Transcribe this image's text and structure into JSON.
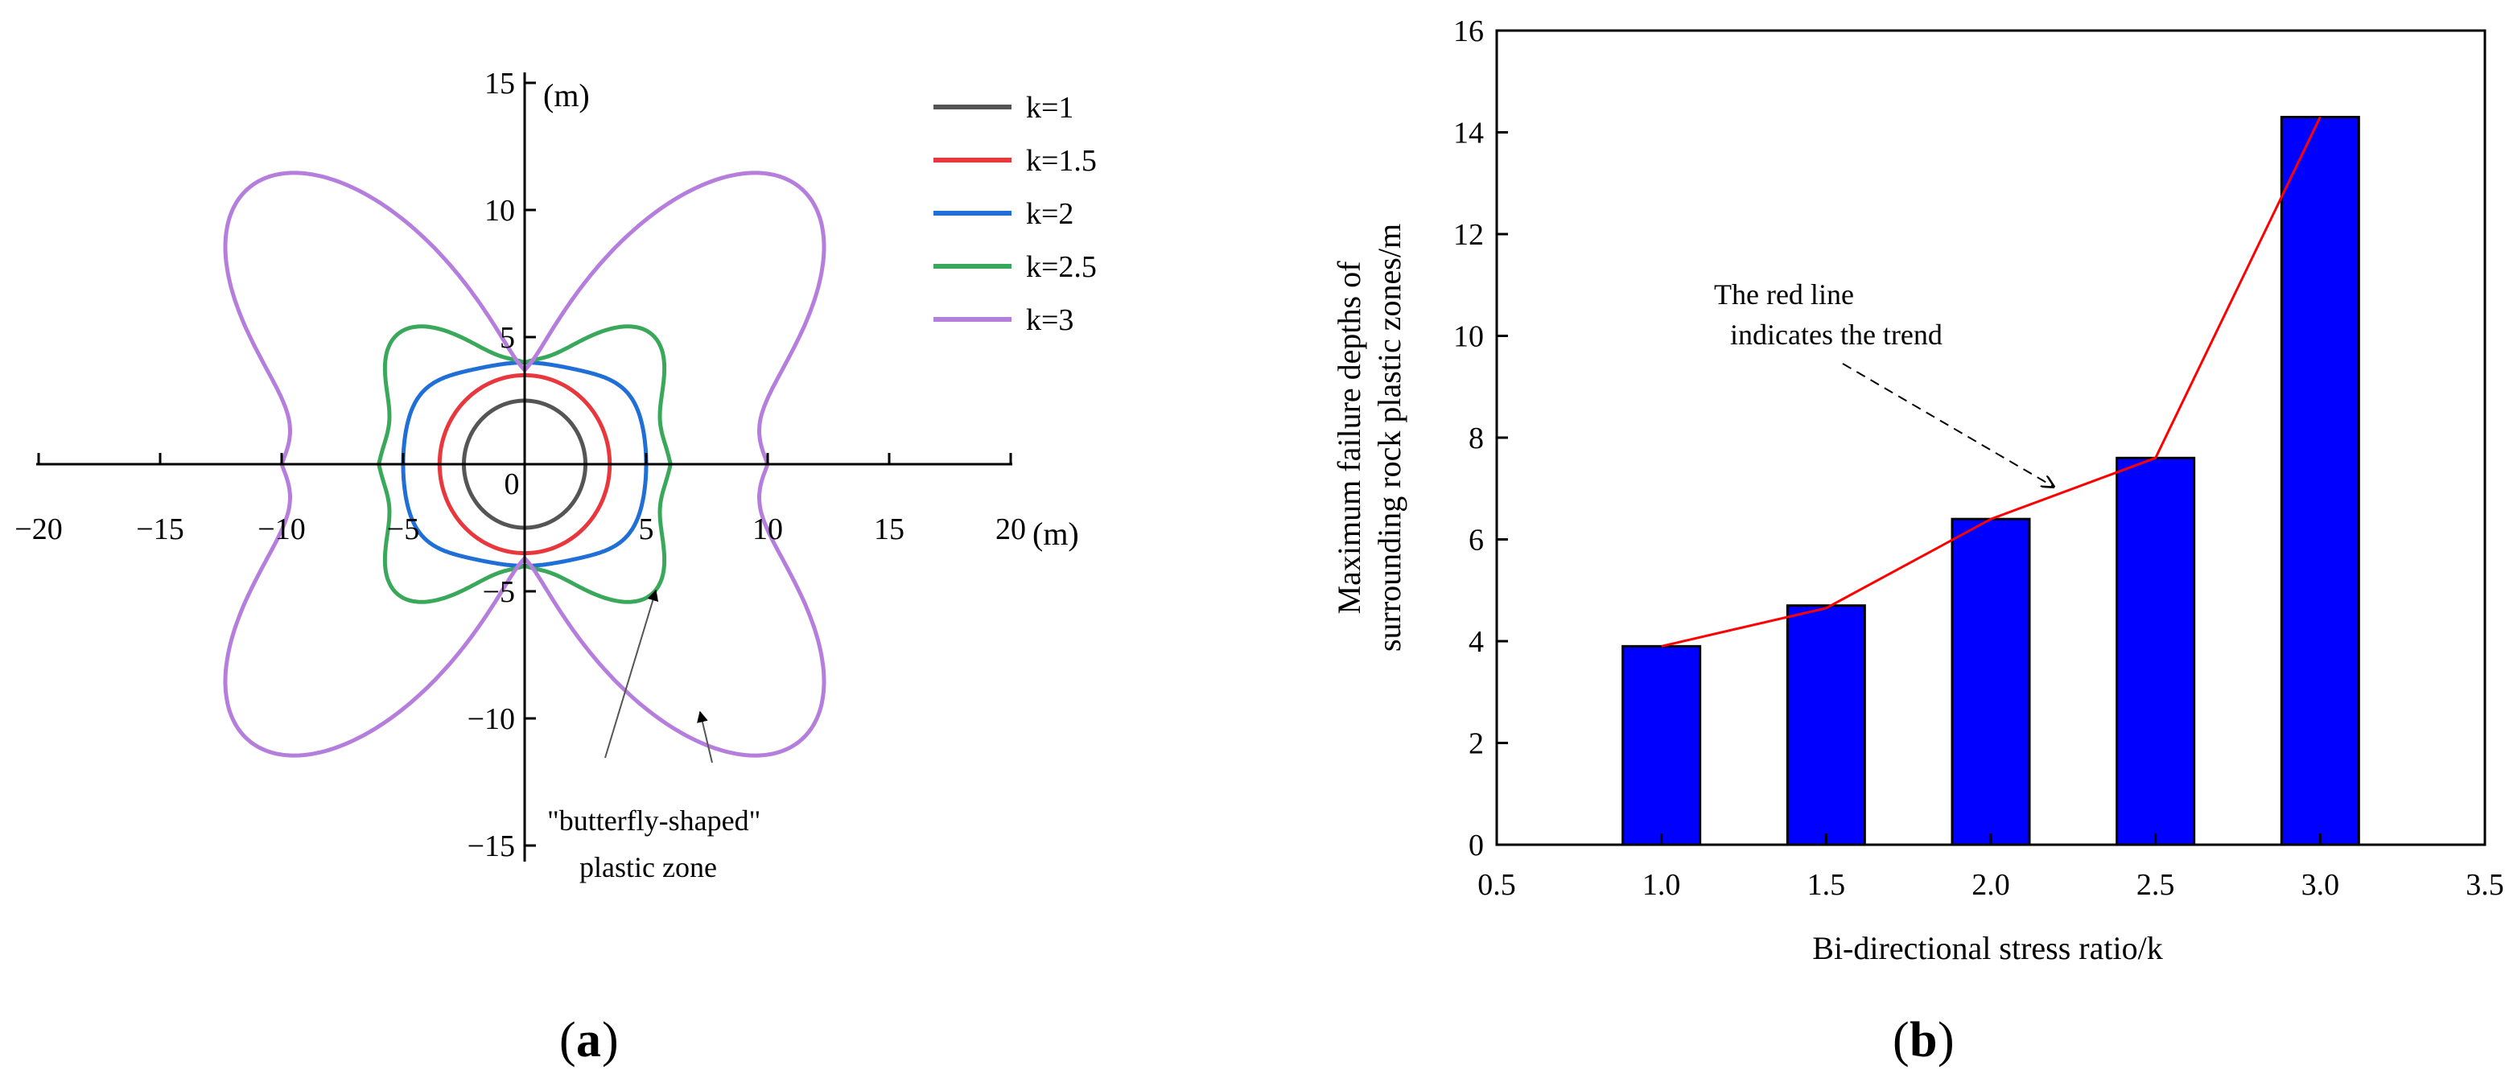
{
  "chart_data": [
    {
      "panel": "a",
      "type": "line",
      "title": "",
      "axes": {
        "x_unit": "(m)",
        "y_unit": "(m)",
        "xlim": [
          -20,
          20
        ],
        "ylim": [
          -15,
          15
        ]
      },
      "x_ticks": [
        "−20",
        "−15",
        "−10",
        "−5",
        "0",
        "5",
        "10",
        "15",
        "20"
      ],
      "y_ticks": [
        "15",
        "10",
        "5",
        "−5",
        "−10",
        "−15"
      ],
      "origin_label": "0",
      "series": [
        {
          "name": "k=1",
          "color": "#555555",
          "shape": "single",
          "depth_x": 2.5,
          "depth_y": 2.5
        },
        {
          "name": "k=1.5",
          "color": "#e8383d",
          "shape": "single",
          "depth_x": 3.5,
          "depth_y": 3.5
        },
        {
          "name": "k=2",
          "color": "#1f6fd6",
          "shape": "wide",
          "depth_x": 5.0,
          "depth_y": 4.0
        },
        {
          "name": "k=2.5",
          "color": "#3aa85a",
          "shape": "lobed",
          "depth_x": 6.5,
          "depth_y": 4.5
        },
        {
          "name": "k=3",
          "color": "#b57edc",
          "shape": "butterfly",
          "depth_x": 10.0,
          "depth_y": 12.0
        }
      ],
      "annotation": [
        "\"butterfly-shaped\"",
        "plastic zone"
      ],
      "label": "a"
    },
    {
      "panel": "b",
      "type": "bar",
      "categories": [
        "1.0",
        "1.5",
        "2.0",
        "2.5",
        "3.0"
      ],
      "x": [
        1.0,
        1.5,
        2.0,
        2.5,
        3.0
      ],
      "values": [
        3.9,
        4.7,
        6.4,
        7.6,
        14.3
      ],
      "bar_color": "#0000ff",
      "trend_line_color": "#ff0000",
      "trend_line": [
        [
          1.0,
          3.9
        ],
        [
          1.5,
          4.65
        ],
        [
          2.0,
          6.4
        ],
        [
          2.5,
          7.6
        ],
        [
          3.0,
          14.3
        ]
      ],
      "xlabel": "Bi-directional stress ratio/k",
      "ylabel": [
        "Maximum failure depths of",
        "surrounding rock plastic zones/m"
      ],
      "xlim": [
        0.5,
        3.5
      ],
      "ylim": [
        0,
        16
      ],
      "x_ticks": [
        "0.5",
        "1.0",
        "1.5",
        "2.0",
        "2.5",
        "3.0",
        "3.5"
      ],
      "y_ticks": [
        "0",
        "2",
        "4",
        "6",
        "8",
        "10",
        "12",
        "14",
        "16"
      ],
      "annotation": [
        "The red line",
        "indicates the trend"
      ],
      "label": "b"
    }
  ]
}
